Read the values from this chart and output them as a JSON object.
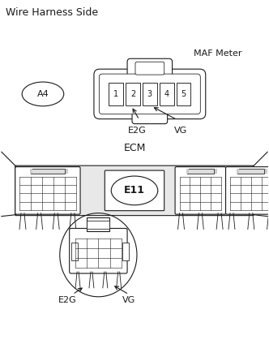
{
  "title_top": "Wire Harness Side",
  "maf_label": "MAF Meter",
  "a4_label": "A4",
  "connector_pins": [
    "1",
    "2",
    "3",
    "4",
    "5"
  ],
  "e2g_label": "E2G",
  "vg_label": "VG",
  "ecm_label": "ECM",
  "e11_label": "E11",
  "bg_color": "#ffffff",
  "line_color": "#1a1a1a",
  "font_size_title": 9,
  "font_size_label": 8,
  "font_size_pin": 7,
  "font_size_ecm": 9
}
